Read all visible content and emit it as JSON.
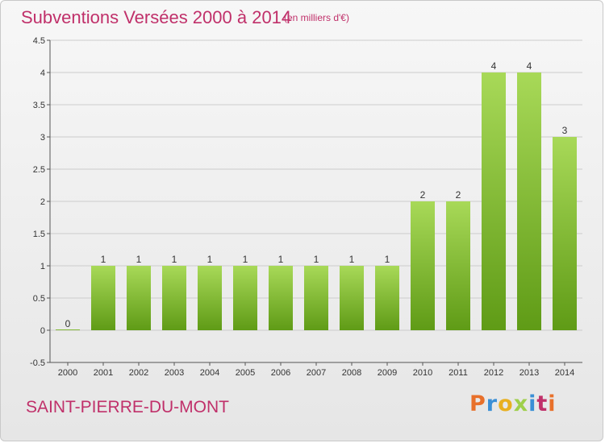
{
  "header": {
    "title": "Subventions Versées 2000 à 2014",
    "subtitle": "(en milliers d'€)"
  },
  "footer": {
    "location": "SAINT-PIERRE-DU-MONT",
    "logo_text": "Proxiti",
    "logo_colors": [
      "#e8702a",
      "#3a8fd6",
      "#e8b020",
      "#9fcf4a",
      "#3a8fd6",
      "#c0306a",
      "#e8702a"
    ]
  },
  "colors": {
    "bar_top": "#a8d958",
    "bar_bottom": "#5f9b16",
    "title": "#c0306a",
    "grid": "#cccccc"
  },
  "chart_data": {
    "type": "bar",
    "title": "Subventions Versées 2000 à 2014",
    "subtitle": "(en milliers d'€)",
    "categories": [
      "2000",
      "2001",
      "2002",
      "2003",
      "2004",
      "2005",
      "2006",
      "2007",
      "2008",
      "2009",
      "2010",
      "2011",
      "2012",
      "2013",
      "2014"
    ],
    "values": [
      0,
      1,
      1,
      1,
      1,
      1,
      1,
      1,
      1,
      1,
      2,
      2,
      4,
      4,
      3
    ],
    "data_labels": [
      "0",
      "1",
      "1",
      "1",
      "1",
      "1",
      "1",
      "1",
      "1",
      "1",
      "2",
      "2",
      "4",
      "4",
      "3"
    ],
    "ylim": [
      -0.5,
      4.5
    ],
    "yticks": [
      -0.5,
      0,
      0.5,
      1,
      1.5,
      2,
      2.5,
      3,
      3.5,
      4,
      4.5
    ],
    "ytick_labels": [
      "-0.5",
      "0",
      "0.5",
      "1",
      "1.5",
      "2",
      "2.5",
      "3",
      "3.5",
      "4",
      "4.5"
    ],
    "grid": "horizontal",
    "xlabel": "",
    "ylabel": ""
  }
}
